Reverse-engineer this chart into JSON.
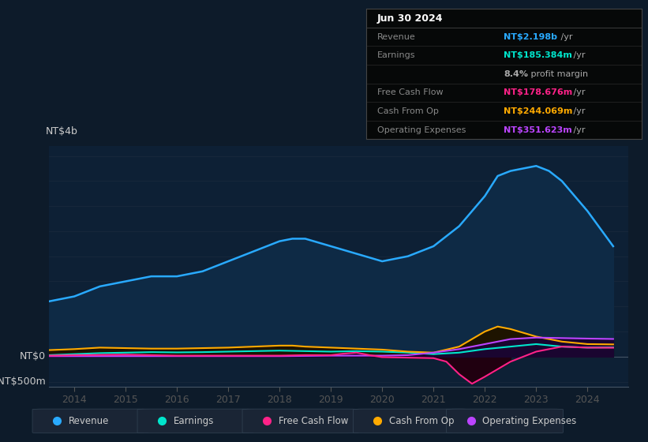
{
  "bg_color": "#0d1b2a",
  "plot_bg_color": "#0d2035",
  "ylim": [
    -600,
    4200
  ],
  "xlim": [
    2013.5,
    2024.8
  ],
  "yticks": [
    -500,
    0,
    500,
    1000,
    1500,
    2000,
    2500,
    3000,
    3500,
    4000
  ],
  "xticks": [
    2014,
    2015,
    2016,
    2017,
    2018,
    2019,
    2020,
    2021,
    2022,
    2023,
    2024
  ],
  "revenue_color": "#29aaff",
  "revenue_fill": "#0e2a45",
  "earnings_color": "#00e5cc",
  "earnings_fill": "#0a2828",
  "fcf_color": "#ff2288",
  "fcf_fill_pos": "#1a0818",
  "fcf_fill_neg": "#200010",
  "cashfromop_color": "#ffaa00",
  "cashfromop_fill": "#1e1400",
  "opex_color": "#bb44ff",
  "opex_fill": "#1a0530",
  "legend": [
    {
      "label": "Revenue",
      "color": "#29aaff"
    },
    {
      "label": "Earnings",
      "color": "#00e5cc"
    },
    {
      "label": "Free Cash Flow",
      "color": "#ff2288"
    },
    {
      "label": "Cash From Op",
      "color": "#ffaa00"
    },
    {
      "label": "Operating Expenses",
      "color": "#bb44ff"
    }
  ],
  "info_rows": [
    {
      "label": "Jun 30 2024",
      "value": "",
      "value_color": "#ffffff",
      "label_color": "#ffffff",
      "is_title": true
    },
    {
      "label": "Revenue",
      "value": "NT$2.198b",
      "suffix": " /yr",
      "value_color": "#29aaff",
      "label_color": "#888888"
    },
    {
      "label": "Earnings",
      "value": "NT$185.384m",
      "suffix": " /yr",
      "value_color": "#00e5cc",
      "label_color": "#888888"
    },
    {
      "label": "",
      "value": "8.4%",
      "suffix": " profit margin",
      "value_color": "#aaaaaa",
      "label_color": "#888888"
    },
    {
      "label": "Free Cash Flow",
      "value": "NT$178.676m",
      "suffix": " /yr",
      "value_color": "#ff2288",
      "label_color": "#888888"
    },
    {
      "label": "Cash From Op",
      "value": "NT$244.069m",
      "suffix": " /yr",
      "value_color": "#ffaa00",
      "label_color": "#888888"
    },
    {
      "label": "Operating Expenses",
      "value": "NT$351.623m",
      "suffix": " /yr",
      "value_color": "#bb44ff",
      "label_color": "#888888"
    }
  ],
  "revenue_data": {
    "x": [
      2013.5,
      2014.0,
      2014.5,
      2015.0,
      2015.5,
      2016.0,
      2016.25,
      2016.5,
      2017.0,
      2017.5,
      2018.0,
      2018.25,
      2018.5,
      2019.0,
      2019.5,
      2020.0,
      2020.5,
      2021.0,
      2021.5,
      2022.0,
      2022.25,
      2022.5,
      2023.0,
      2023.25,
      2023.5,
      2024.0,
      2024.5
    ],
    "y": [
      1100,
      1200,
      1400,
      1500,
      1600,
      1600,
      1650,
      1700,
      1900,
      2100,
      2300,
      2350,
      2350,
      2200,
      2050,
      1900,
      2000,
      2200,
      2600,
      3200,
      3600,
      3700,
      3800,
      3700,
      3500,
      2900,
      2200
    ]
  },
  "earnings_data": {
    "x": [
      2013.5,
      2014.0,
      2014.5,
      2015.0,
      2015.5,
      2016.0,
      2016.5,
      2017.0,
      2017.5,
      2018.0,
      2018.5,
      2019.0,
      2019.5,
      2020.0,
      2020.5,
      2021.0,
      2021.5,
      2022.0,
      2022.5,
      2023.0,
      2023.5,
      2024.0,
      2024.5
    ],
    "y": [
      30,
      50,
      70,
      80,
      90,
      85,
      90,
      100,
      110,
      120,
      110,
      100,
      110,
      100,
      80,
      50,
      80,
      150,
      200,
      250,
      200,
      180,
      185
    ]
  },
  "fcf_data": {
    "x": [
      2013.5,
      2014.0,
      2015.0,
      2016.0,
      2017.0,
      2018.0,
      2018.5,
      2019.0,
      2019.25,
      2019.5,
      2019.75,
      2020.0,
      2020.5,
      2021.0,
      2021.25,
      2021.5,
      2021.75,
      2022.0,
      2022.5,
      2023.0,
      2023.5,
      2024.0,
      2024.5
    ],
    "y": [
      20,
      30,
      40,
      20,
      20,
      20,
      30,
      30,
      60,
      80,
      30,
      -10,
      -20,
      -30,
      -100,
      -350,
      -540,
      -400,
      -100,
      100,
      200,
      180,
      178
    ]
  },
  "cashfromop_data": {
    "x": [
      2013.5,
      2014.0,
      2014.5,
      2015.0,
      2015.5,
      2016.0,
      2016.5,
      2017.0,
      2017.5,
      2018.0,
      2018.25,
      2018.5,
      2019.0,
      2019.25,
      2019.5,
      2020.0,
      2020.5,
      2021.0,
      2021.5,
      2022.0,
      2022.25,
      2022.5,
      2023.0,
      2023.5,
      2024.0,
      2024.5
    ],
    "y": [
      130,
      150,
      180,
      170,
      160,
      160,
      170,
      180,
      200,
      220,
      220,
      200,
      180,
      170,
      160,
      140,
      100,
      80,
      200,
      500,
      600,
      550,
      400,
      300,
      250,
      244
    ]
  },
  "opex_data": {
    "x": [
      2013.5,
      2014.0,
      2015.0,
      2016.0,
      2017.0,
      2018.0,
      2019.0,
      2020.0,
      2020.5,
      2021.0,
      2021.5,
      2022.0,
      2022.5,
      2023.0,
      2023.5,
      2024.0,
      2024.5
    ],
    "y": [
      10,
      10,
      10,
      10,
      10,
      10,
      20,
      20,
      30,
      80,
      150,
      250,
      350,
      380,
      370,
      360,
      352
    ]
  }
}
